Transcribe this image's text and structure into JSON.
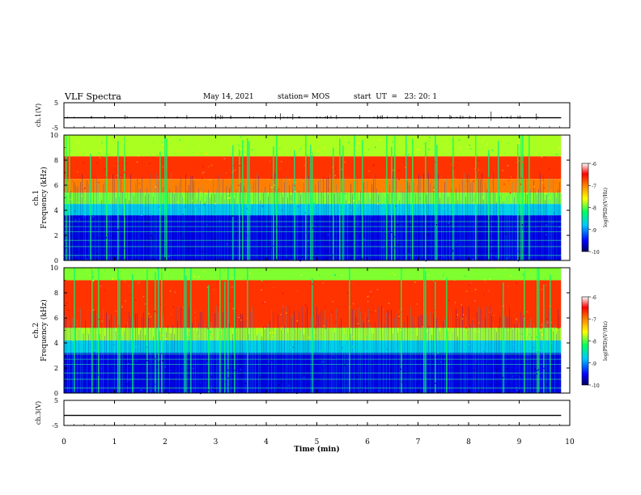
{
  "header": {
    "title": "VLF Spectra",
    "date": "May 14, 2021",
    "station": "station= MOS",
    "start": "start  UT  =   23: 20: 1"
  },
  "chart_data": [
    {
      "type": "line",
      "panel": "ch1-waveform",
      "ylabel": "ch.1(V)",
      "ylim": [
        -5,
        5
      ],
      "yticks": [
        "5",
        "-5"
      ],
      "xlim": [
        0,
        10
      ],
      "series": [
        {
          "values": [
            -1,
            -1
          ]
        }
      ]
    },
    {
      "type": "heatmap",
      "panel": "ch1-spectrogram",
      "ylabel": "ch.1\nFrequency (kHz)",
      "ylim": [
        0,
        10
      ],
      "yticks": [
        0,
        2,
        4,
        6,
        8,
        10
      ],
      "xlim": [
        0,
        10
      ],
      "colorbar": {
        "label": "log(PSD)(V²/Hz)",
        "range": [
          -10,
          -6
        ],
        "ticks": [
          -6,
          -7,
          -8,
          -9,
          -10
        ]
      },
      "bands": [
        {
          "from_khz": 8.3,
          "to_khz": 10,
          "level": -7.8
        },
        {
          "from_khz": 6.5,
          "to_khz": 8.3,
          "level": -6.7
        },
        {
          "from_khz": 5.4,
          "to_khz": 6.5,
          "level": -7.0
        },
        {
          "from_khz": 4.5,
          "to_khz": 5.4,
          "level": -7.9
        },
        {
          "from_khz": 3.6,
          "to_khz": 4.5,
          "level": -8.7
        },
        {
          "from_khz": 0,
          "to_khz": 3.6,
          "level": -9.6
        }
      ]
    },
    {
      "type": "heatmap",
      "panel": "ch2-spectrogram",
      "ylabel": "ch.2\nFrequency (kHz)",
      "ylim": [
        0,
        10
      ],
      "yticks": [
        0,
        2,
        4,
        6,
        8,
        10
      ],
      "xlim": [
        0,
        10
      ],
      "colorbar": {
        "label": "log(PSD)(V²/Hz)",
        "range": [
          -10,
          -6
        ],
        "ticks": [
          -6,
          -7,
          -8,
          -9,
          -10
        ]
      },
      "bands": [
        {
          "from_khz": 9.0,
          "to_khz": 10,
          "level": -7.9
        },
        {
          "from_khz": 5.2,
          "to_khz": 9.0,
          "level": -6.7
        },
        {
          "from_khz": 4.2,
          "to_khz": 5.2,
          "level": -7.8
        },
        {
          "from_khz": 3.2,
          "to_khz": 4.2,
          "level": -8.7
        },
        {
          "from_khz": 0,
          "to_khz": 3.2,
          "level": -9.6
        }
      ]
    },
    {
      "type": "line",
      "panel": "ch3-waveform",
      "ylabel": "ch.3(V)",
      "ylim": [
        -5,
        5
      ],
      "yticks": [
        "5",
        "-5"
      ],
      "xlim": [
        0,
        10
      ],
      "series": [
        {
          "values": [
            -1,
            -1
          ]
        }
      ]
    }
  ],
  "xaxis": {
    "label": "Time  (min)",
    "ticks": [
      0,
      1,
      2,
      3,
      4,
      5,
      6,
      7,
      8,
      9,
      10
    ],
    "data_end_min": 9.83
  }
}
